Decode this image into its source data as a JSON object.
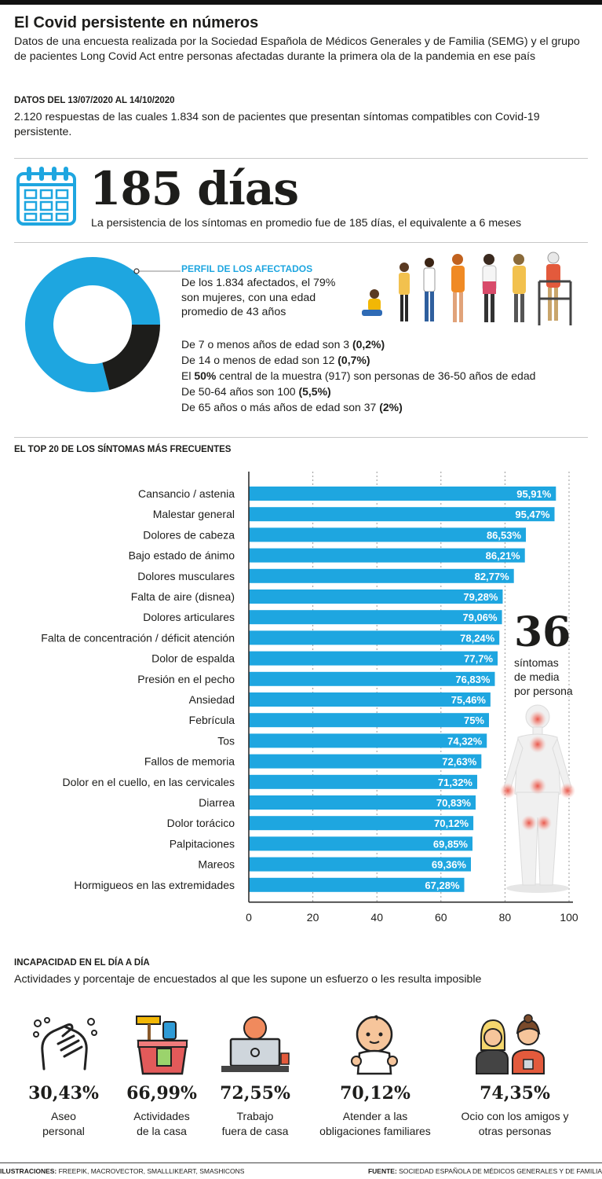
{
  "header": {
    "title": "El Covid persistente en números",
    "subtitle": "Datos de una encuesta realizada por la Sociedad Española de Médicos Generales y de Familia (SEMG) y el grupo de pacientes Long Covid Act entre personas afectadas durante la primera ola de la pandemia en ese país",
    "dates_label": "DATOS DEL 13/07/2020 AL 14/10/2020",
    "dates_text": "2.120 respuestas de las cuales 1.834 son de pacientes que presentan síntomas compatibles con Covid-19 persistente."
  },
  "duration": {
    "icon": "calendar-icon",
    "big_number": "185 días",
    "description": "La persistencia de los síntomas en promedio fue de 185 días, el equivalente a 6 meses"
  },
  "profile": {
    "heading": "PERFIL DE LOS AFECTADOS",
    "text": "De los 1.834 afectados, el 79% son mujeres, con una edad promedio de 43 años",
    "women_share": 79,
    "ages": [
      {
        "text": "De 7 o menos años de edad son 3 ",
        "bold": "(0,2%)",
        "tail": ""
      },
      {
        "text": "De 14 o menos de edad son 12 ",
        "bold": "(0,7%)",
        "tail": ""
      },
      {
        "text": "El ",
        "bold": "50%",
        "tail": " central de la muestra (917) son personas de 36-50 años de edad"
      },
      {
        "text": "De 50-64 años son 100 ",
        "bold": "(5,5%)",
        "tail": ""
      },
      {
        "text": "De 65 años o más años de edad son 37 ",
        "bold": "(2%)",
        "tail": ""
      }
    ]
  },
  "chart_data": {
    "type": "bar",
    "orientation": "horizontal",
    "title": "EL TOP 20 DE LOS SÍNTOMAS MÁS FRECUENTES",
    "categories": [
      "Cansancio / astenia",
      "Malestar general",
      "Dolores de cabeza",
      "Bajo estado de ánimo",
      "Dolores musculares",
      "Falta de aire (disnea)",
      "Dolores articulares",
      "Falta de concentración / déficit atención",
      "Dolor de espalda",
      "Presión en el pecho",
      "Ansiedad",
      "Febrícula",
      "Tos",
      "Fallos de memoria",
      "Dolor en el cuello, en las cervicales",
      "Diarrea",
      "Dolor torácico",
      "Palpitaciones",
      "Mareos",
      "Hormigueos en las extremidades"
    ],
    "values": [
      95.91,
      95.47,
      86.53,
      86.21,
      82.77,
      79.28,
      79.06,
      78.24,
      77.7,
      76.83,
      75.46,
      75,
      74.32,
      72.63,
      71.32,
      70.83,
      70.12,
      69.85,
      69.36,
      67.28
    ],
    "value_labels": [
      "95,91%",
      "95,47%",
      "86,53%",
      "86,21%",
      "82,77%",
      "79,28%",
      "79,06%",
      "78,24%",
      "77,7%",
      "76,83%",
      "75,46%",
      "75%",
      "74,32%",
      "72,63%",
      "71,32%",
      "70,83%",
      "70,12%",
      "69,85%",
      "69,36%",
      "67,28%"
    ],
    "xticks": [
      0,
      20,
      40,
      60,
      80,
      100
    ],
    "xlim": [
      0,
      100
    ],
    "bar_color": "#1ea6e0",
    "grid": "vertical dotted"
  },
  "symptoms_avg": {
    "big_number": "36",
    "line1": "síntomas",
    "line2": "de media",
    "line3": "por persona",
    "icon": "human-body-icon"
  },
  "incapacity": {
    "heading": "INCAPACIDAD EN EL DÍA A DÍA",
    "subtitle": "Actividades y porcentaje de encuestados al que les supone un esfuerzo o les resulta imposible",
    "items": [
      {
        "pct": "30,43%",
        "line1": "Aseo",
        "line2": "personal",
        "icon": "hand-washing-icon"
      },
      {
        "pct": "66,99%",
        "line1": "Actividades",
        "line2": "de la casa",
        "icon": "cleaning-bucket-icon"
      },
      {
        "pct": "72,55%",
        "line1": "Trabajo",
        "line2": "fuera de casa",
        "icon": "laptop-worker-icon"
      },
      {
        "pct": "70,12%",
        "line1": "Atender a las",
        "line2": "obligaciones familiares",
        "icon": "baby-icon"
      },
      {
        "pct": "74,35%",
        "line1": "Ocio con los amigos y",
        "line2": "otras personas",
        "icon": "friends-icon"
      }
    ]
  },
  "footer": {
    "left_label": "ILUSTRACIONES:",
    "left_text": " FREEPIK, MACROVECTOR, SMALLLIKEART, SMASHICONS",
    "right_label": "FUENTE:",
    "right_text": " SOCIEDAD ESPAÑOLA DE MÉDICOS GENERALES Y DE FAMILIA"
  },
  "colors": {
    "accent": "#1ea6e0",
    "dark": "#1d1d1b",
    "pain": "#e9574b"
  }
}
